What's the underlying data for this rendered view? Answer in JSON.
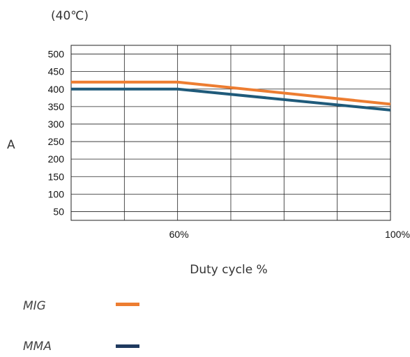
{
  "chart_data": {
    "type": "line",
    "subtitle": "(40℃)",
    "ylabel": "A",
    "xlabel": "Duty cycle %",
    "ylim": [
      25,
      525
    ],
    "y_ticks": [
      500,
      450,
      400,
      350,
      300,
      250,
      200,
      150,
      100,
      50
    ],
    "y_tick_labels": [
      "500",
      "450",
      "400",
      "350",
      "300",
      "250",
      "200",
      "150",
      "100",
      "50"
    ],
    "x_domain": [
      0,
      6
    ],
    "x_ticks": [
      2,
      6
    ],
    "x_tick_labels": [
      "60%",
      "100%"
    ],
    "grid": true,
    "series": [
      {
        "name": "MIG",
        "color": "#ed7d31",
        "x": [
          0,
          2,
          6
        ],
        "y": [
          420,
          420,
          357
        ]
      },
      {
        "name": "MMA",
        "color": "#1f5a7a",
        "x": [
          0,
          2,
          6
        ],
        "y": [
          400,
          400,
          340
        ]
      }
    ],
    "legend": [
      {
        "label": "MIG",
        "color": "#ed7d31"
      },
      {
        "label": "MMA",
        "color": "#1f3a5f"
      }
    ]
  }
}
